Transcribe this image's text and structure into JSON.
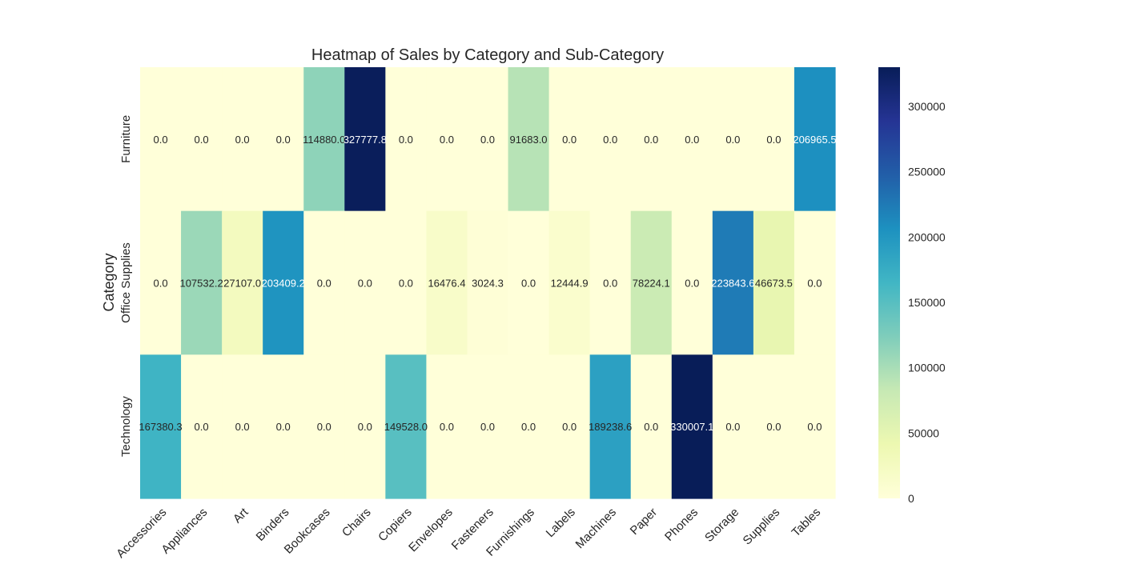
{
  "chart_data": {
    "type": "heatmap",
    "title": "Heatmap of Sales by Category and Sub-Category",
    "xlabel": "",
    "ylabel": "Category",
    "x_categories": [
      "Accessories",
      "Appliances",
      "Art",
      "Binders",
      "Bookcases",
      "Chairs",
      "Copiers",
      "Envelopes",
      "Fasteners",
      "Furnishings",
      "Labels",
      "Machines",
      "Paper",
      "Phones",
      "Storage",
      "Supplies",
      "Tables"
    ],
    "y_categories": [
      "Furniture",
      "Office Supplies",
      "Technology"
    ],
    "values": [
      [
        0.0,
        0.0,
        0.0,
        0.0,
        114880.0,
        327777.8,
        0.0,
        0.0,
        0.0,
        91683.0,
        0.0,
        0.0,
        0.0,
        0.0,
        0.0,
        0.0,
        206965.5
      ],
      [
        0.0,
        107532.2,
        27107.0,
        203409.2,
        0.0,
        0.0,
        0.0,
        16476.4,
        3024.3,
        0.0,
        12444.9,
        0.0,
        78224.1,
        0.0,
        223843.6,
        46673.5,
        0.0
      ],
      [
        167380.3,
        0.0,
        0.0,
        0.0,
        0.0,
        0.0,
        149528.0,
        0.0,
        0.0,
        0.0,
        0.0,
        189238.6,
        0.0,
        330007.1,
        0.0,
        0.0,
        0.0
      ]
    ],
    "cell_labels": [
      [
        "0.0",
        "0.0",
        "0.0",
        "0.0",
        "114880.0",
        "327777.8",
        "0.0",
        "0.0",
        "0.0",
        "91683.0",
        "0.0",
        "0.0",
        "0.0",
        "0.0",
        "0.0",
        "0.0",
        "206965.5"
      ],
      [
        "0.0",
        "107532.2",
        "27107.0",
        "203409.2",
        "0.0",
        "0.0",
        "0.0",
        "16476.4",
        "3024.3",
        "0.0",
        "12444.9",
        "0.0",
        "78224.1",
        "0.0",
        "223843.6",
        "46673.5",
        "0.0"
      ],
      [
        "167380.3",
        "0.0",
        "0.0",
        "0.0",
        "0.0",
        "0.0",
        "149528.0",
        "0.0",
        "0.0",
        "0.0",
        "0.0",
        "189238.6",
        "0.0",
        "330007.1",
        "0.0",
        "0.0",
        "0.0"
      ]
    ],
    "color_range": [
      0,
      330007.1
    ],
    "colormap": "YlGnBu",
    "colorbar": {
      "ticks": [
        0,
        50000,
        100000,
        150000,
        200000,
        250000,
        300000
      ],
      "tick_labels": [
        "0",
        "50000",
        "100000",
        "150000",
        "200000",
        "250000",
        "300000"
      ]
    },
    "grid": false,
    "legend": "colorbar-right"
  }
}
